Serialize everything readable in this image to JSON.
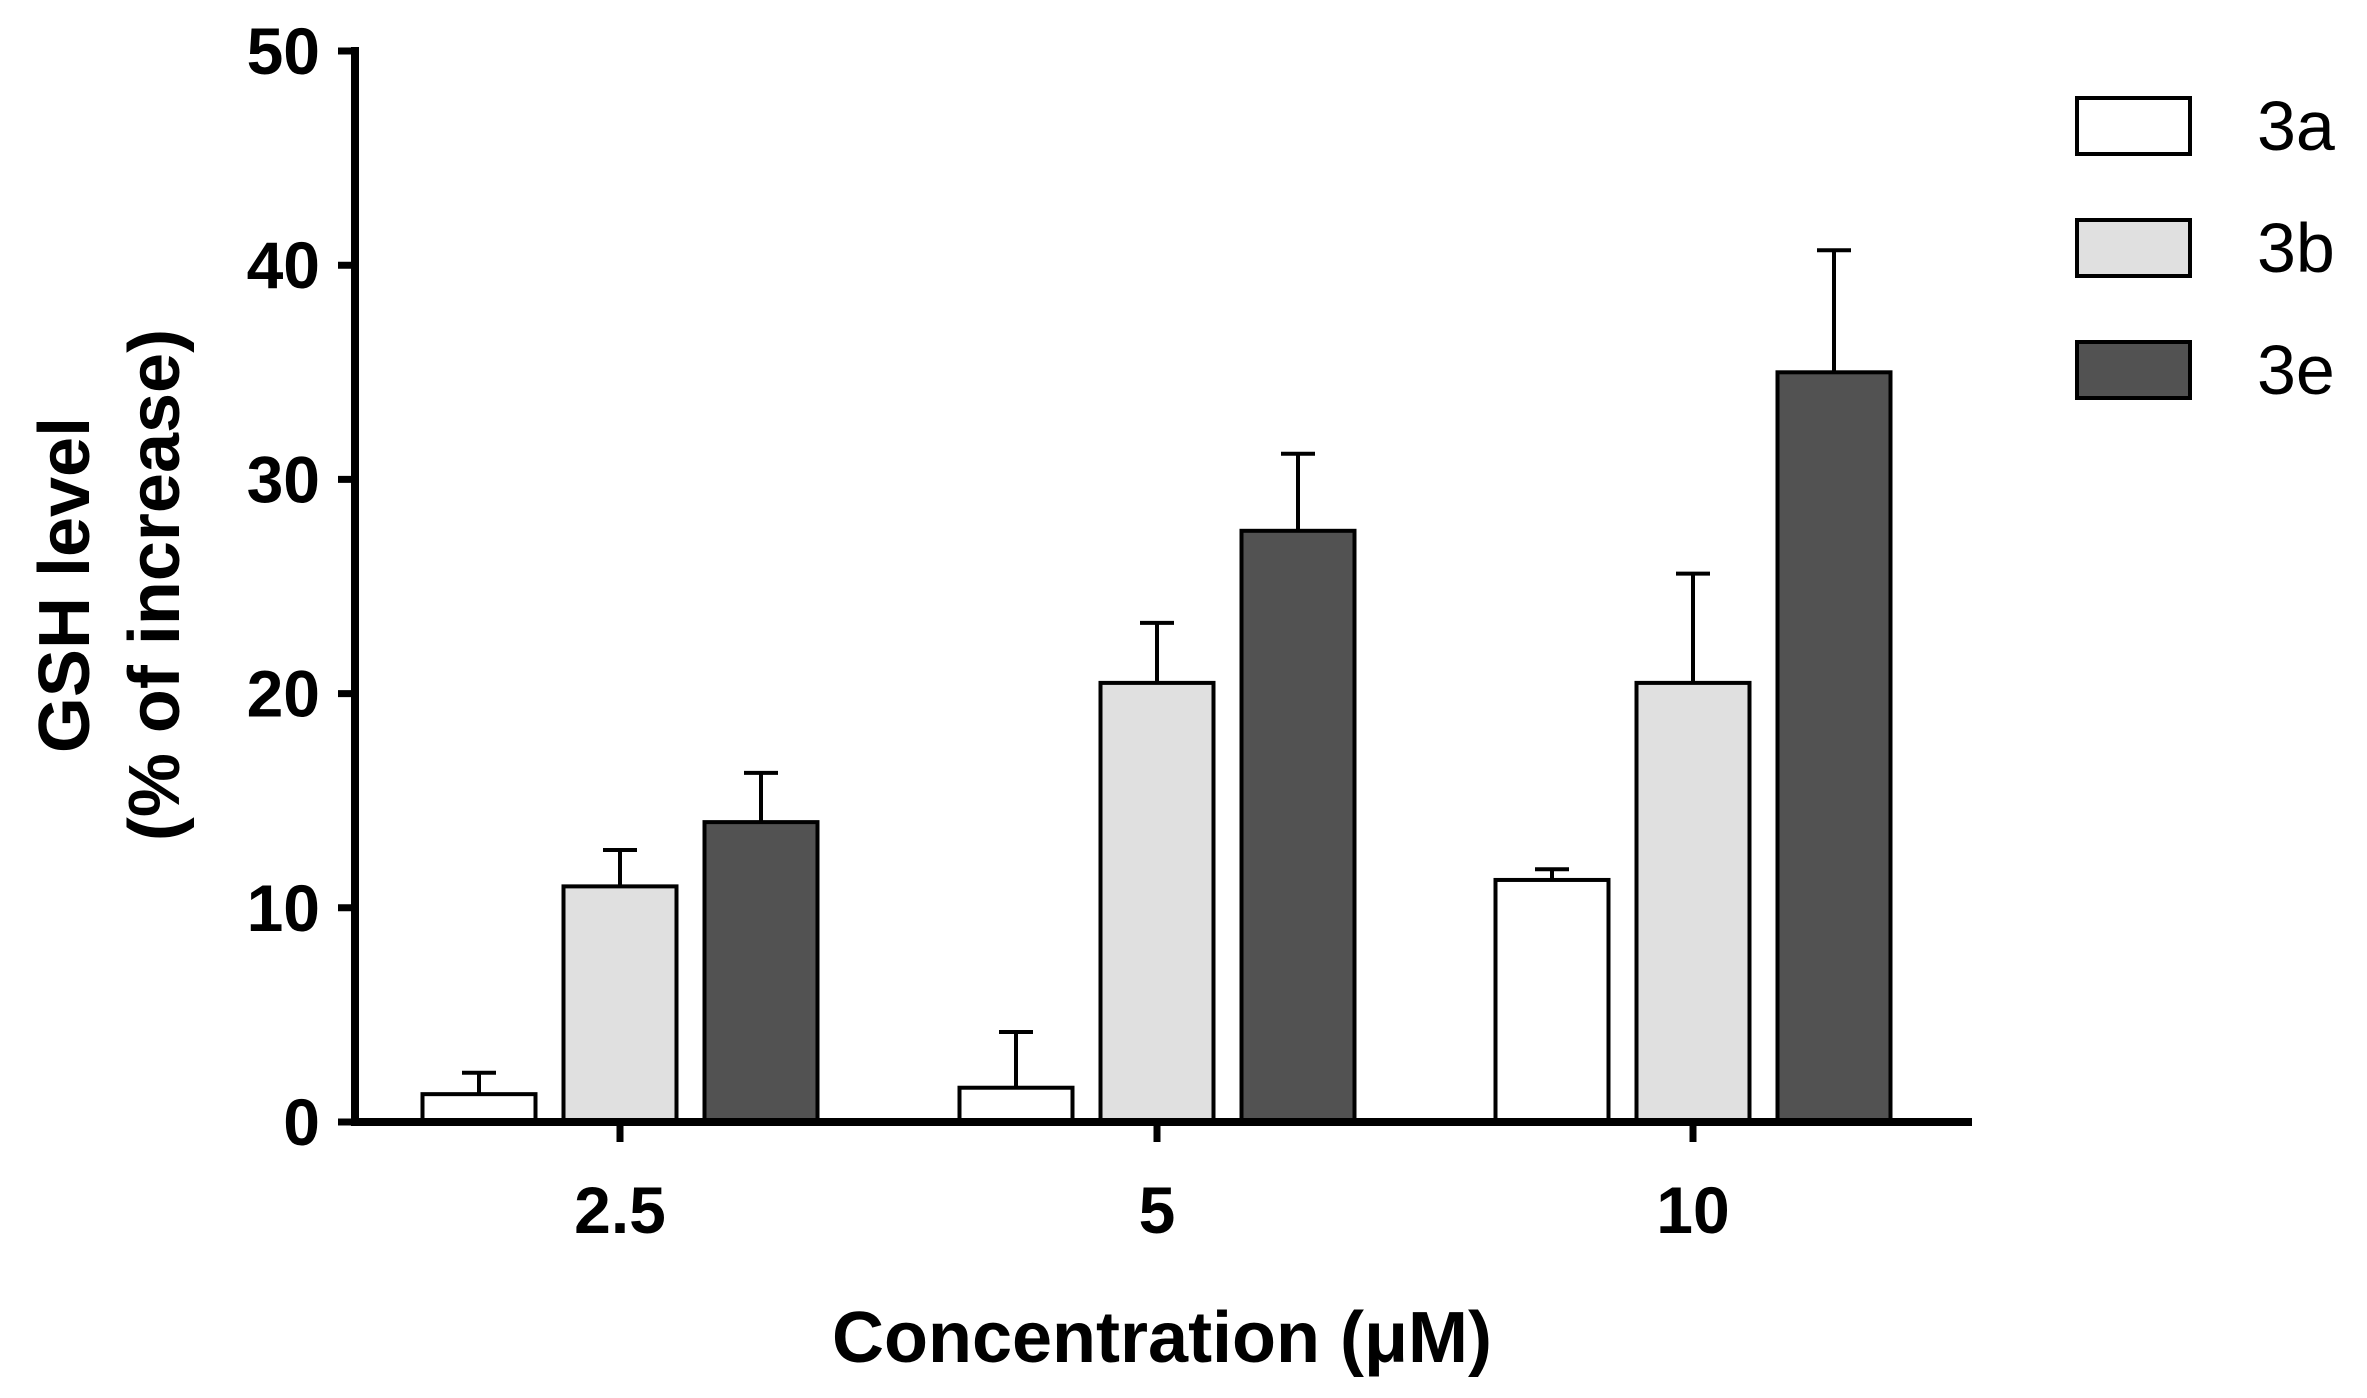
{
  "chart_data": {
    "type": "bar",
    "title": "",
    "xlabel": "Concentration (μM)",
    "ylabel_line1": "GSH level",
    "ylabel_line2": "(% of increase)",
    "categories": [
      "2.5",
      "5",
      "10"
    ],
    "ylim": [
      0,
      50
    ],
    "yticks": [
      "0",
      "10",
      "20",
      "30",
      "40",
      "50"
    ],
    "legend_position": "top-right",
    "series": [
      {
        "name": "3a",
        "color": "#ffffff",
        "values": [
          1.3,
          1.6,
          11.3
        ],
        "errors": [
          1.0,
          2.6,
          0.5
        ]
      },
      {
        "name": "3b",
        "color": "#e0e0e0",
        "values": [
          11.0,
          20.5,
          20.5
        ],
        "errors": [
          1.7,
          2.8,
          5.1
        ]
      },
      {
        "name": "3e",
        "color": "#525252",
        "values": [
          14.0,
          27.6,
          35.0
        ],
        "errors": [
          2.3,
          3.6,
          5.7
        ]
      }
    ]
  }
}
